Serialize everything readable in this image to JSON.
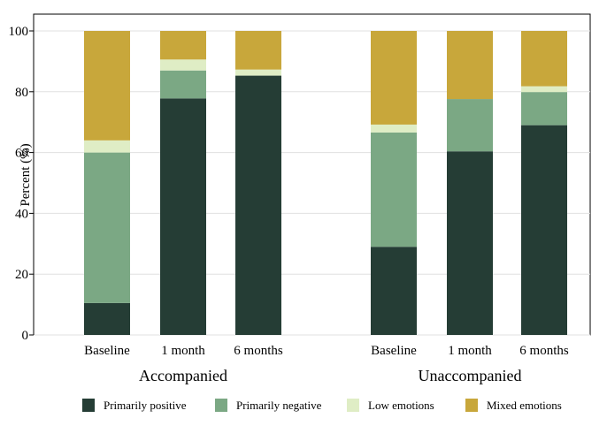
{
  "chart_data": {
    "type": "bar",
    "stacked": true,
    "title": "",
    "xlabel": "",
    "ylabel": "Percent (%)",
    "ylim": [
      0,
      100
    ],
    "yticks": [
      0,
      20,
      40,
      60,
      80,
      100
    ],
    "grid": true,
    "legend_position": "bottom",
    "groups": [
      {
        "label": "Accompanied",
        "categories": [
          "Baseline",
          "1 month",
          "6 months"
        ]
      },
      {
        "label": "Unaccompanied",
        "categories": [
          "Baseline",
          "1 month",
          "6 months"
        ]
      }
    ],
    "series": [
      {
        "name": "Primarily positive",
        "color": "#253d35",
        "values": [
          10.5,
          77.8,
          85.3,
          29.0,
          60.4,
          69.0
        ]
      },
      {
        "name": "Primarily negative",
        "color": "#7ba884",
        "values": [
          49.5,
          9.2,
          0.0,
          37.6,
          17.2,
          10.9
        ]
      },
      {
        "name": "Low emotions",
        "color": "#dfedc5",
        "values": [
          4.0,
          3.6,
          2.0,
          2.6,
          0.0,
          1.9
        ]
      },
      {
        "name": "Mixed emotions",
        "color": "#c8a73b",
        "values": [
          36.0,
          9.4,
          12.7,
          30.8,
          22.4,
          18.2
        ]
      }
    ]
  }
}
